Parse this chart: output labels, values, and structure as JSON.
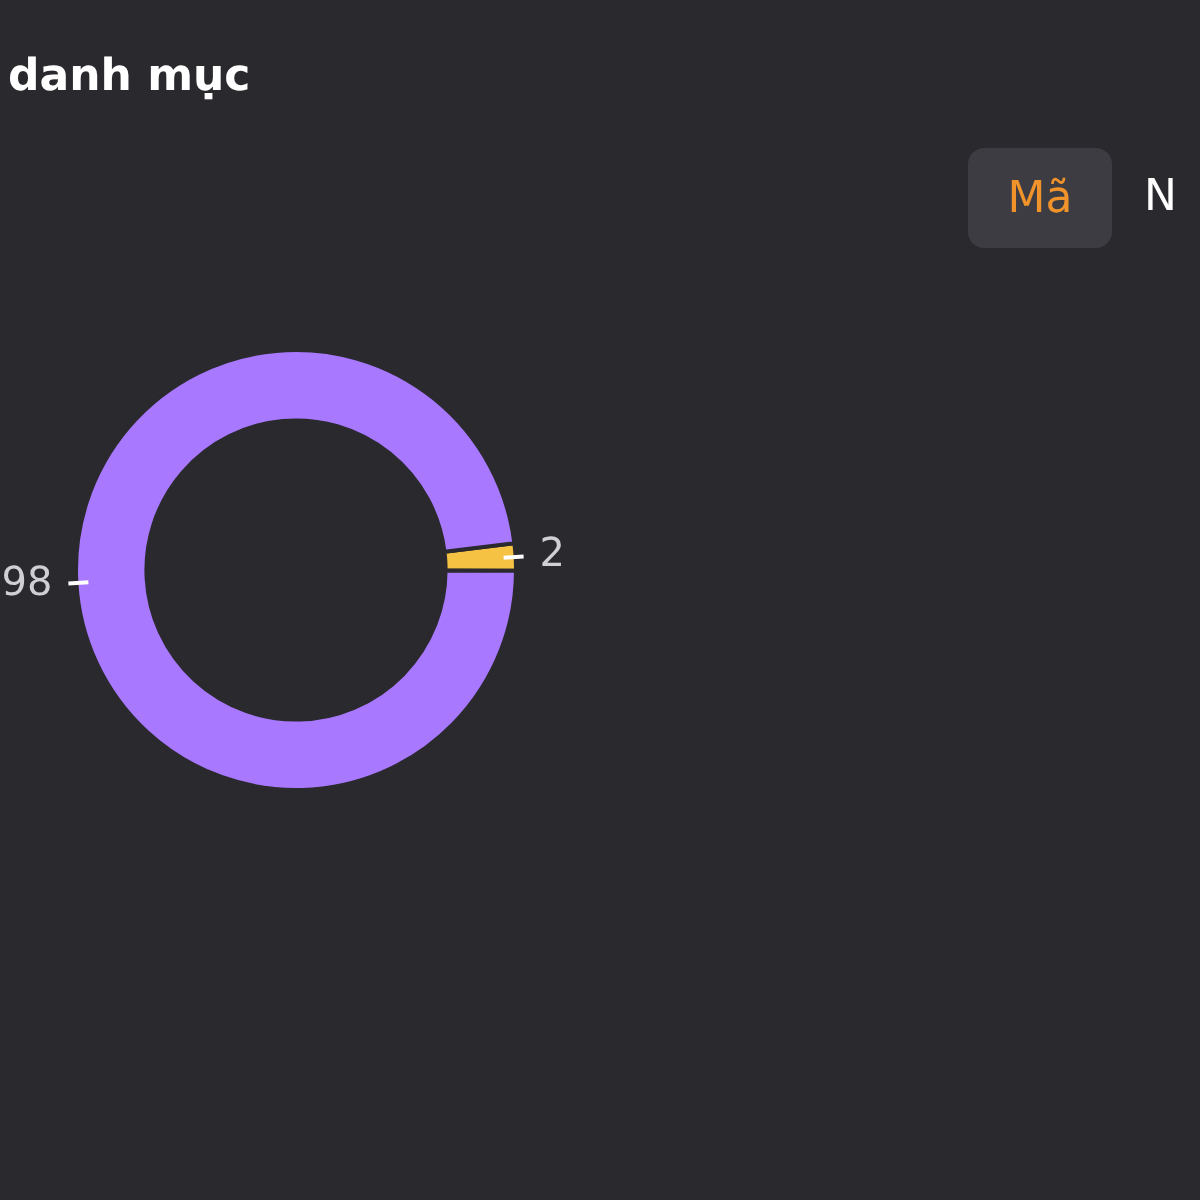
{
  "chart_data": {
    "type": "donut",
    "title": "danh mục",
    "categories": [
      null,
      null
    ],
    "values": [
      2,
      98
    ],
    "colors": [
      "#f5c243",
      "#a878ff"
    ],
    "data_labels": true,
    "legend": false,
    "annotations": [
      "Mã",
      "N"
    ]
  }
}
